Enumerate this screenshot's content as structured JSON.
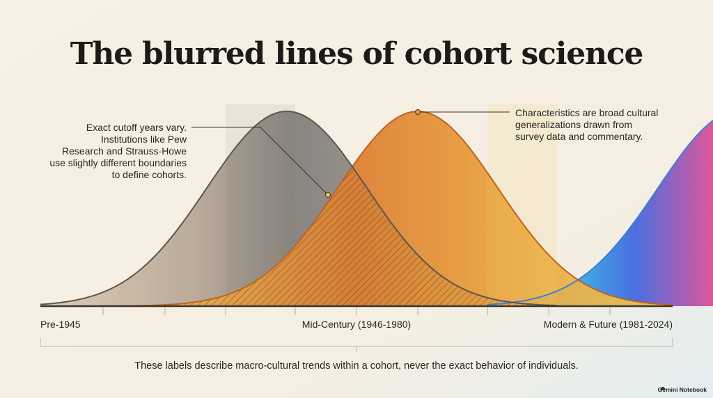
{
  "title": "The blurred lines of cohort science",
  "annotations": {
    "left": [
      "Exact cutoff years vary.",
      "Institutions like Pew",
      "Research and Strauss-Howe",
      "use slightly different boundaries",
      "to define cohorts."
    ],
    "right": [
      "Characteristics are broad cultural",
      "generalizations drawn from",
      "survey data and commentary."
    ]
  },
  "axis": {
    "labels": [
      "Pre-1945",
      "Mid-Century (1946-1980)",
      "Modern & Future (1981-2024)"
    ]
  },
  "footnote": "These labels describe macro-cultural trends within a cohort, never the exact behavior of individuals.",
  "brand": "Gemini Notebook"
}
